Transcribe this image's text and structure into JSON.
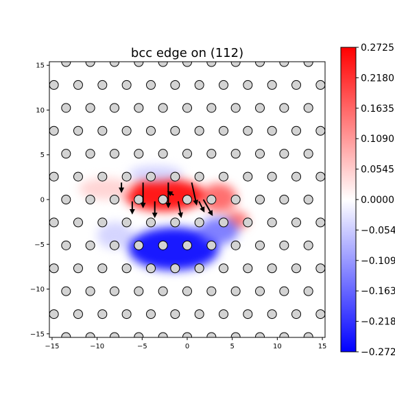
{
  "chart_data": {
    "type": "heatmap",
    "title": "bcc edge on (112)",
    "xlabel": "",
    "ylabel": "",
    "xlim": [
      -15.3,
      15.3
    ],
    "ylim": [
      -15.4,
      15.4
    ],
    "x_ticks": [
      -15,
      -10,
      -5,
      0,
      5,
      10,
      15
    ],
    "y_ticks": [
      -15,
      -10,
      -5,
      0,
      5,
      10,
      15
    ],
    "x_tick_labels": [
      "−15",
      "−10",
      "−5",
      "0",
      "5",
      "10",
      "15"
    ],
    "y_tick_labels": [
      "−15",
      "−10",
      "−5",
      "0",
      "5",
      "10",
      "15"
    ],
    "colormap": "bwr",
    "colors": {
      "min": "#0000ff",
      "mid": "#ffffff",
      "max": "#ff0000"
    },
    "clim": [
      -0.2725,
      0.2725
    ],
    "colorbar_ticks": [
      0.2725,
      0.218,
      0.1635,
      0.109,
      0.0545,
      0.0,
      -0.0545,
      -0.109,
      -0.1635,
      -0.218,
      -0.2725
    ],
    "colorbar_tick_labels": [
      "0.2725",
      "0.2180",
      "0.1635",
      "0.1090",
      "0.0545",
      "0.0000",
      "−0.0545",
      "−0.1090",
      "−0.1635",
      "−0.2180",
      "−0.2725"
    ],
    "atoms": {
      "lattice_x": 2.69,
      "lattice_y": 2.56,
      "marker_fill": "#d3d3d3",
      "marker_edge": "#000000"
    },
    "field_blobs": [
      {
        "x": -2.5,
        "y": 0.5,
        "sx": 4.5,
        "sy": 1.8,
        "value": 0.2725
      },
      {
        "x": 3.5,
        "y": 0.2,
        "sx": 2.0,
        "sy": 1.6,
        "value": 0.17
      },
      {
        "x": -9.0,
        "y": 1.2,
        "sx": 3.0,
        "sy": 1.2,
        "value": 0.05
      },
      {
        "x": 5.5,
        "y": -2.3,
        "sx": 1.3,
        "sy": 1.0,
        "value": 0.16
      },
      {
        "x": -3.5,
        "y": 2.9,
        "sx": 3.0,
        "sy": 0.9,
        "value": -0.05
      },
      {
        "x": -1.5,
        "y": -5.5,
        "sx": 5.0,
        "sy": 2.4,
        "value": -0.2725
      },
      {
        "x": 3.5,
        "y": -3.5,
        "sx": 2.2,
        "sy": 1.5,
        "value": -0.15
      },
      {
        "x": -8.0,
        "y": -4.0,
        "sx": 2.0,
        "sy": 1.5,
        "value": -0.05
      }
    ],
    "arrows": [
      {
        "x": -7.3,
        "y": 1.9,
        "dx": 0.0,
        "dy": -0.9
      },
      {
        "x": -4.9,
        "y": 1.9,
        "dx": 0.0,
        "dy": -2.6
      },
      {
        "x": -2.1,
        "y": 1.9,
        "dx": 0.0,
        "dy": -2.6
      },
      {
        "x": 0.5,
        "y": 1.9,
        "dx": 0.5,
        "dy": -2.3
      },
      {
        "x": -6.1,
        "y": -0.2,
        "dx": 0.0,
        "dy": -1.2
      },
      {
        "x": -3.6,
        "y": -0.2,
        "dx": 0.0,
        "dy": -1.6
      },
      {
        "x": -1.0,
        "y": -0.2,
        "dx": 0.3,
        "dy": -1.6
      },
      {
        "x": 1.3,
        "y": -0.2,
        "dx": 0.5,
        "dy": -1.0
      },
      {
        "x": 1.8,
        "y": 0.0,
        "dx": 0.9,
        "dy": -1.6
      },
      {
        "x": -1.5,
        "y": 0.5,
        "dx": -0.5,
        "dy": 0.3
      }
    ]
  }
}
